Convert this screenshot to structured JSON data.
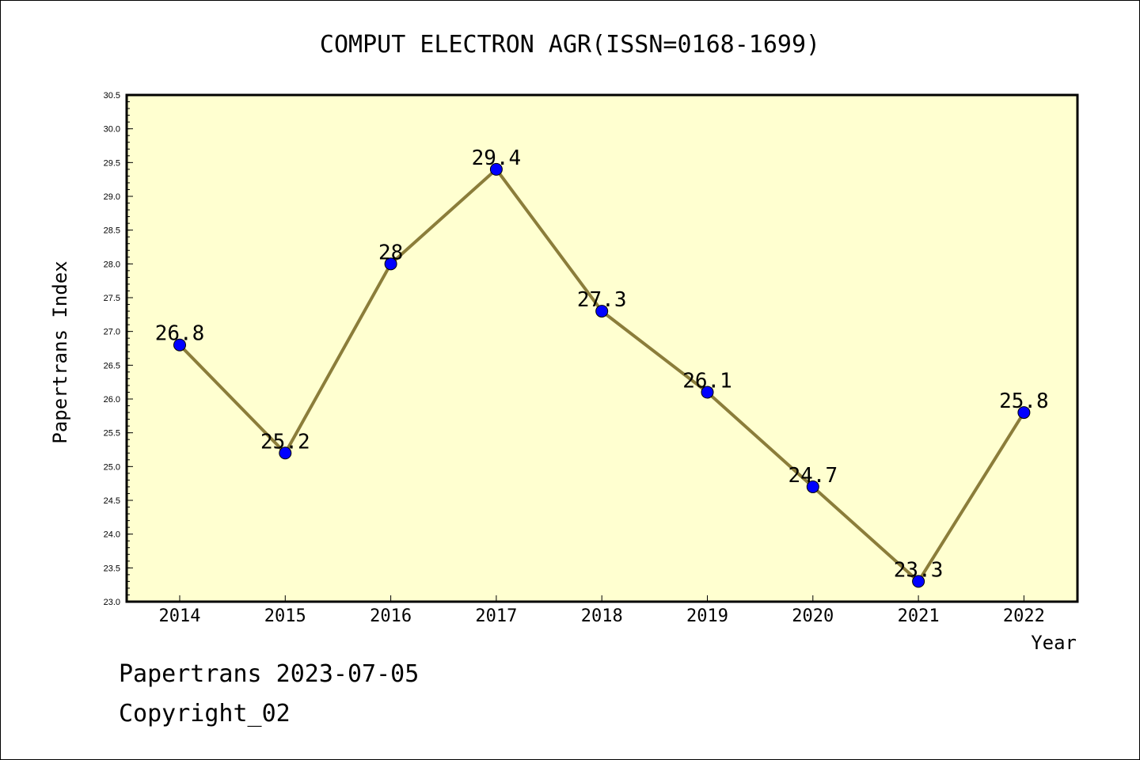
{
  "chart_data": {
    "type": "line",
    "title": "COMPUT ELECTRON AGR(ISSN=0168-1699)",
    "xlabel": "Year",
    "ylabel": "Papertrans Index",
    "categories": [
      "2014",
      "2015",
      "2016",
      "2017",
      "2018",
      "2019",
      "2020",
      "2021",
      "2022"
    ],
    "series": [
      {
        "values": [
          26.8,
          25.2,
          28,
          29.4,
          27.3,
          26.1,
          24.7,
          23.3,
          25.8
        ],
        "labels": [
          "26.8",
          "25.2",
          "28",
          "29.4",
          "27.3",
          "26.1",
          "24.7",
          "23.3",
          "25.8"
        ]
      }
    ],
    "ylim": [
      23.0,
      30.5
    ],
    "yticks": [
      "23.0",
      "23.5",
      "24.0",
      "24.5",
      "25.0",
      "25.5",
      "26.0",
      "26.5",
      "27.0",
      "27.5",
      "28.0",
      "28.5",
      "29.0",
      "29.5",
      "30.0",
      "30.5"
    ],
    "grid": false,
    "colors": {
      "plot_background": "#ffffd0",
      "line": "#8b7d3a",
      "marker": "#0000ff"
    }
  },
  "footer": {
    "line1": "Papertrans 2023-07-05",
    "line2": "Copyright_02"
  }
}
